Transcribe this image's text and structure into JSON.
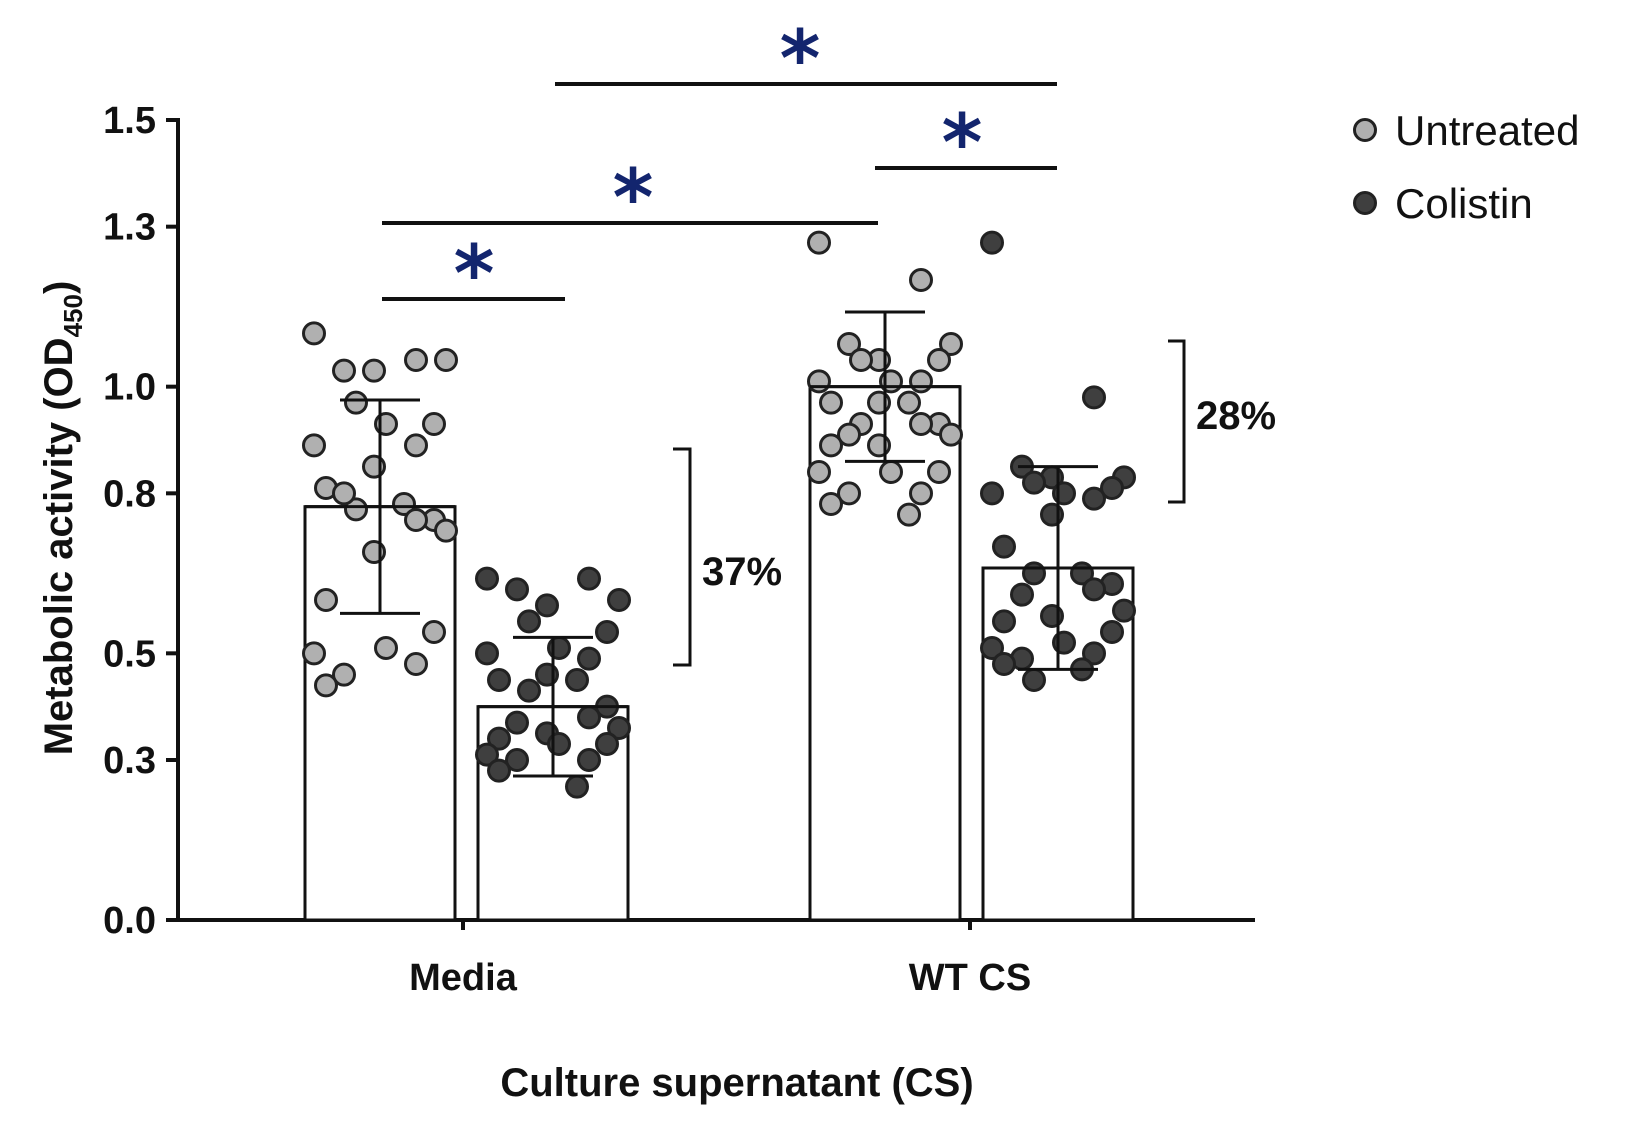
{
  "chart_data": {
    "type": "bar",
    "xlabel": "Culture supernatant (CS)",
    "ylabel": "Metabolic activity (OD",
    "ylabel_sub": "450",
    "ylabel_close": ")",
    "ylim": [
      0,
      1.5
    ],
    "yticks": [
      0.0,
      0.3,
      0.5,
      0.8,
      1.0,
      1.3,
      1.5
    ],
    "ytick_labels": [
      "0.0",
      "0.3",
      "0.5",
      "0.8",
      "1.0",
      "1.3",
      "1.5"
    ],
    "categories": [
      "Media",
      "WT CS"
    ],
    "series": [
      {
        "name": "Untreated",
        "color": "#b0b0b0",
        "values": [
          0.775,
          1.0
        ],
        "errors": [
          0.2,
          0.14
        ],
        "points": [
          [
            1.1,
            1.05,
            1.03,
            1.05,
            1.03,
            0.97,
            0.93,
            0.93,
            0.89,
            0.89,
            0.85,
            0.81,
            0.78,
            0.77,
            0.75,
            0.75,
            0.8,
            0.73,
            0.69,
            0.6,
            0.54,
            0.51,
            0.5,
            0.48,
            0.46,
            0.44
          ],
          [
            1.27,
            1.2,
            1.08,
            1.08,
            1.05,
            1.05,
            1.05,
            1.01,
            1.01,
            1.01,
            0.97,
            0.97,
            0.97,
            0.93,
            0.93,
            0.93,
            0.91,
            0.91,
            0.89,
            0.89,
            0.84,
            0.84,
            0.84,
            0.8,
            0.8,
            0.78,
            0.76
          ]
        ]
      },
      {
        "name": "Colistin",
        "color": "#3f3f3f",
        "values": [
          0.4,
          0.66
        ],
        "errors": [
          0.13,
          0.19
        ],
        "points": [
          [
            0.64,
            0.64,
            0.62,
            0.6,
            0.59,
            0.56,
            0.54,
            0.51,
            0.5,
            0.49,
            0.46,
            0.45,
            0.45,
            0.43,
            0.4,
            0.38,
            0.37,
            0.36,
            0.35,
            0.34,
            0.33,
            0.33,
            0.31,
            0.3,
            0.3,
            0.28,
            0.25
          ],
          [
            1.27,
            0.98,
            0.85,
            0.83,
            0.83,
            0.82,
            0.81,
            0.8,
            0.8,
            0.79,
            0.76,
            0.7,
            0.65,
            0.65,
            0.63,
            0.62,
            0.61,
            0.58,
            0.57,
            0.56,
            0.54,
            0.52,
            0.51,
            0.5,
            0.49,
            0.48,
            0.47,
            0.45
          ]
        ]
      }
    ],
    "percent_annotations": [
      "37%",
      "28%"
    ],
    "significance_marker": "*",
    "significance_color": "#13256e",
    "legend_position": "top-right"
  }
}
